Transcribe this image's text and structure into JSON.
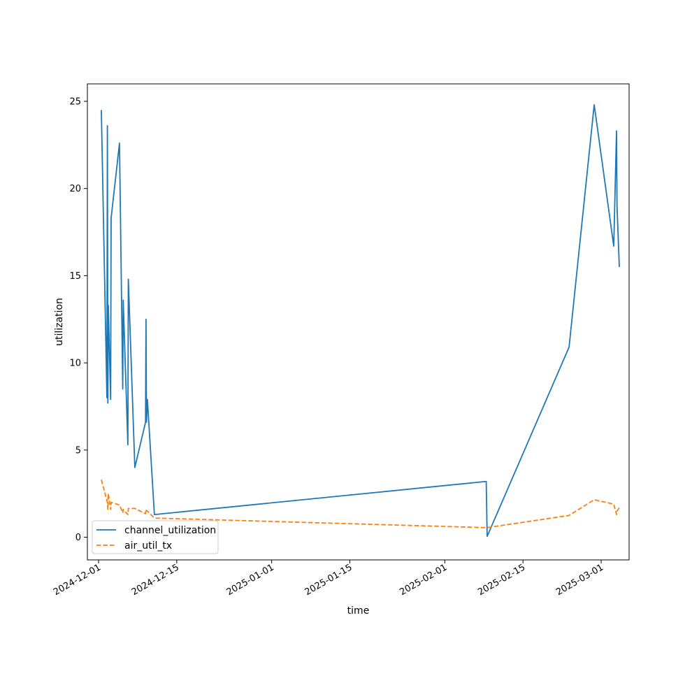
{
  "chart_data": {
    "type": "line",
    "xlabel": "time",
    "ylabel": "utilization",
    "xlim": [
      "2024-11-29T00:00",
      "2025-03-06T00:00"
    ],
    "ylim": [
      -1.3,
      26.0
    ],
    "x_ticks": [
      "2024-12-01",
      "2024-12-15",
      "2025-01-01",
      "2025-01-15",
      "2025-02-01",
      "2025-02-15",
      "2025-03-01"
    ],
    "y_ticks": [
      0,
      5,
      10,
      15,
      20,
      25
    ],
    "grid": false,
    "legend_position": "lower-left",
    "series": [
      {
        "name": "channel_utilization",
        "color": "#1f77b4",
        "dash": "solid",
        "points": [
          [
            "2024-12-01T12:00",
            24.5
          ],
          [
            "2024-12-02T12:00",
            8.0
          ],
          [
            "2024-12-02T14:00",
            23.6
          ],
          [
            "2024-12-02T16:00",
            7.7
          ],
          [
            "2024-12-02T18:00",
            13.3
          ],
          [
            "2024-12-03T04:00",
            7.9
          ],
          [
            "2024-12-03T06:00",
            18.3
          ],
          [
            "2024-12-04T18:00",
            22.6
          ],
          [
            "2024-12-05T08:00",
            8.5
          ],
          [
            "2024-12-05T10:00",
            13.6
          ],
          [
            "2024-12-06T06:00",
            5.3
          ],
          [
            "2024-12-06T08:00",
            14.8
          ],
          [
            "2024-12-07T12:00",
            4.0
          ],
          [
            "2024-12-09T10:00",
            6.6
          ],
          [
            "2024-12-09T12:00",
            12.5
          ],
          [
            "2024-12-09T14:00",
            6.6
          ],
          [
            "2024-12-09T18:00",
            7.9
          ],
          [
            "2024-12-11T00:00",
            1.3
          ],
          [
            "2025-02-08T10:00",
            3.2
          ],
          [
            "2025-02-08T14:00",
            0.05
          ],
          [
            "2025-02-23T06:00",
            10.9
          ],
          [
            "2025-02-27T18:00",
            24.8
          ],
          [
            "2025-03-03T06:00",
            16.7
          ],
          [
            "2025-03-03T18:00",
            23.3
          ],
          [
            "2025-03-03T20:00",
            19.0
          ],
          [
            "2025-03-04T06:00",
            15.5
          ]
        ]
      },
      {
        "name": "air_util_tx",
        "color": "#ff7f0e",
        "dash": "dashed",
        "points": [
          [
            "2024-12-01T12:00",
            3.3
          ],
          [
            "2024-12-02T12:00",
            2.1
          ],
          [
            "2024-12-02T14:00",
            2.0
          ],
          [
            "2024-12-02T16:00",
            1.6
          ],
          [
            "2024-12-02T18:00",
            2.5
          ],
          [
            "2024-12-03T04:00",
            1.6
          ],
          [
            "2024-12-03T06:00",
            2.0
          ],
          [
            "2024-12-04T18:00",
            1.85
          ],
          [
            "2024-12-05T08:00",
            1.4
          ],
          [
            "2024-12-05T10:00",
            1.6
          ],
          [
            "2024-12-06T06:00",
            1.3
          ],
          [
            "2024-12-06T08:00",
            1.65
          ],
          [
            "2024-12-07T12:00",
            1.65
          ],
          [
            "2024-12-09T10:00",
            1.35
          ],
          [
            "2024-12-09T12:00",
            1.6
          ],
          [
            "2024-12-09T14:00",
            1.5
          ],
          [
            "2024-12-09T18:00",
            1.5
          ],
          [
            "2024-12-11T00:00",
            1.1
          ],
          [
            "2025-02-08T10:00",
            0.55
          ],
          [
            "2025-02-08T14:00",
            0.55
          ],
          [
            "2025-02-23T06:00",
            1.25
          ],
          [
            "2025-02-27T18:00",
            2.15
          ],
          [
            "2025-03-03T06:00",
            1.9
          ],
          [
            "2025-03-03T18:00",
            1.3
          ],
          [
            "2025-03-03T20:00",
            1.5
          ],
          [
            "2025-03-04T06:00",
            1.7
          ]
        ]
      }
    ]
  }
}
